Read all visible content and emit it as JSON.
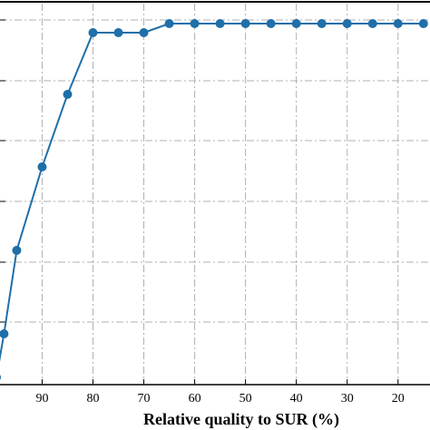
{
  "chart_data": {
    "type": "line",
    "xlabel": "Relative quality to SUR (%)",
    "ylabel": "",
    "x_reversed": true,
    "x_ticks": [
      90,
      80,
      70,
      60,
      50,
      40,
      30,
      20
    ],
    "xlim": [
      99,
      13
    ],
    "ylim": [
      0,
      1
    ],
    "grid": true,
    "grid_style": "dash-dot",
    "line_color": "#1f6fa8",
    "series": [
      {
        "x": [
          99,
          97.5,
          95,
          90,
          85,
          80,
          75,
          70,
          65,
          60,
          55,
          50,
          45,
          40,
          35,
          30,
          25,
          20,
          15
        ],
        "y": [
          0.02,
          0.14,
          0.37,
          0.6,
          0.8,
          0.97,
          0.97,
          0.97,
          0.995,
          0.995,
          0.995,
          0.995,
          0.995,
          0.995,
          0.995,
          0.995,
          0.995,
          0.995,
          0.995
        ]
      }
    ]
  }
}
